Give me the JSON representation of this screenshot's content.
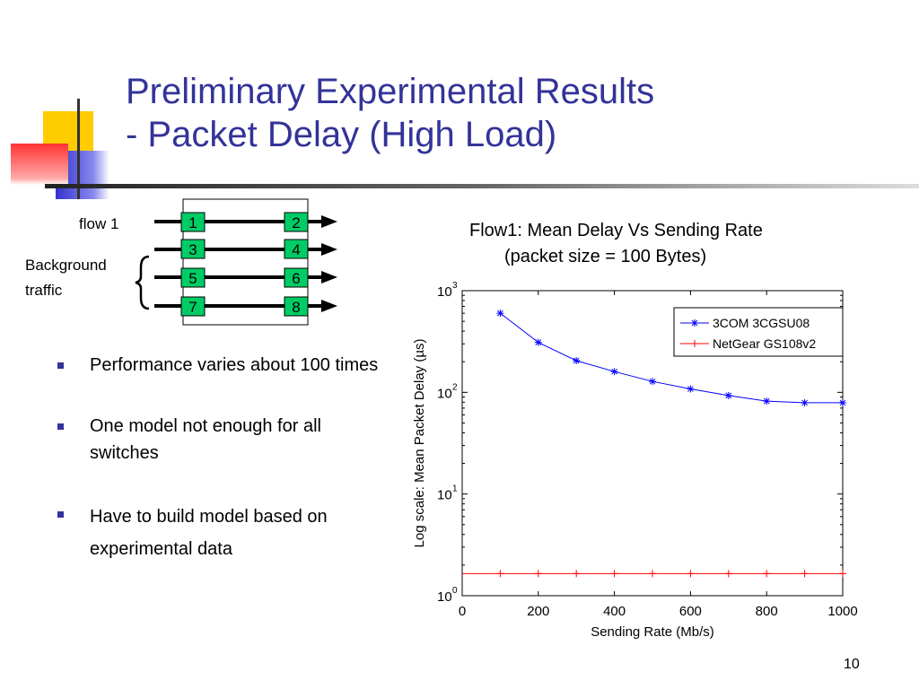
{
  "slide": {
    "title_line1": "Preliminary Experimental Results",
    "title_line2": "- Packet Delay (High Load)",
    "slide_number": "10",
    "colors": {
      "title": "#333399",
      "bullet": "#333399",
      "box_fill": "#00cc66",
      "series1": "#0000ff",
      "series2": "#ff0000"
    }
  },
  "diagram": {
    "flow1_label": "flow 1",
    "background_label_line1": "Background",
    "background_label_line2": "traffic",
    "ports": [
      "1",
      "2",
      "3",
      "4",
      "5",
      "6",
      "7",
      "8"
    ]
  },
  "bullets": [
    "Performance varies about 100 times",
    "One model not enough for all switches",
    "Have to build model based on experimental data"
  ],
  "chart_caption": {
    "line1": "Flow1:  Mean Delay Vs Sending Rate",
    "line2": "(packet size = 100 Bytes)"
  },
  "chart_data": {
    "type": "line",
    "title": "",
    "xlabel": "Sending Rate (Mb/s)",
    "ylabel": "Log scale: Mean Packet Delay (µs)",
    "xlim": [
      0,
      1000
    ],
    "ylim": [
      1,
      1000
    ],
    "yscale": "log",
    "xticks": [
      "0",
      "200",
      "400",
      "600",
      "800",
      "1000"
    ],
    "yticks": [
      {
        "base": "10",
        "exp": "0"
      },
      {
        "base": "10",
        "exp": "1"
      },
      {
        "base": "10",
        "exp": "2"
      },
      {
        "base": "10",
        "exp": "3"
      }
    ],
    "legend_position": "top-right",
    "grid": false,
    "series": [
      {
        "name": "3COM 3CGSU08",
        "color": "#0000ff",
        "marker": "*",
        "x": [
          100,
          200,
          300,
          400,
          500,
          600,
          700,
          800,
          900,
          1000
        ],
        "y": [
          600,
          310,
          205,
          160,
          128,
          108,
          93,
          82,
          79,
          79
        ]
      },
      {
        "name": "NetGear GS108v2",
        "color": "#ff0000",
        "marker": "+",
        "x": [
          0,
          100,
          200,
          300,
          400,
          500,
          600,
          700,
          800,
          900,
          1000
        ],
        "y": [
          1.65,
          1.65,
          1.65,
          1.65,
          1.65,
          1.65,
          1.65,
          1.65,
          1.65,
          1.65,
          1.65
        ]
      }
    ]
  }
}
